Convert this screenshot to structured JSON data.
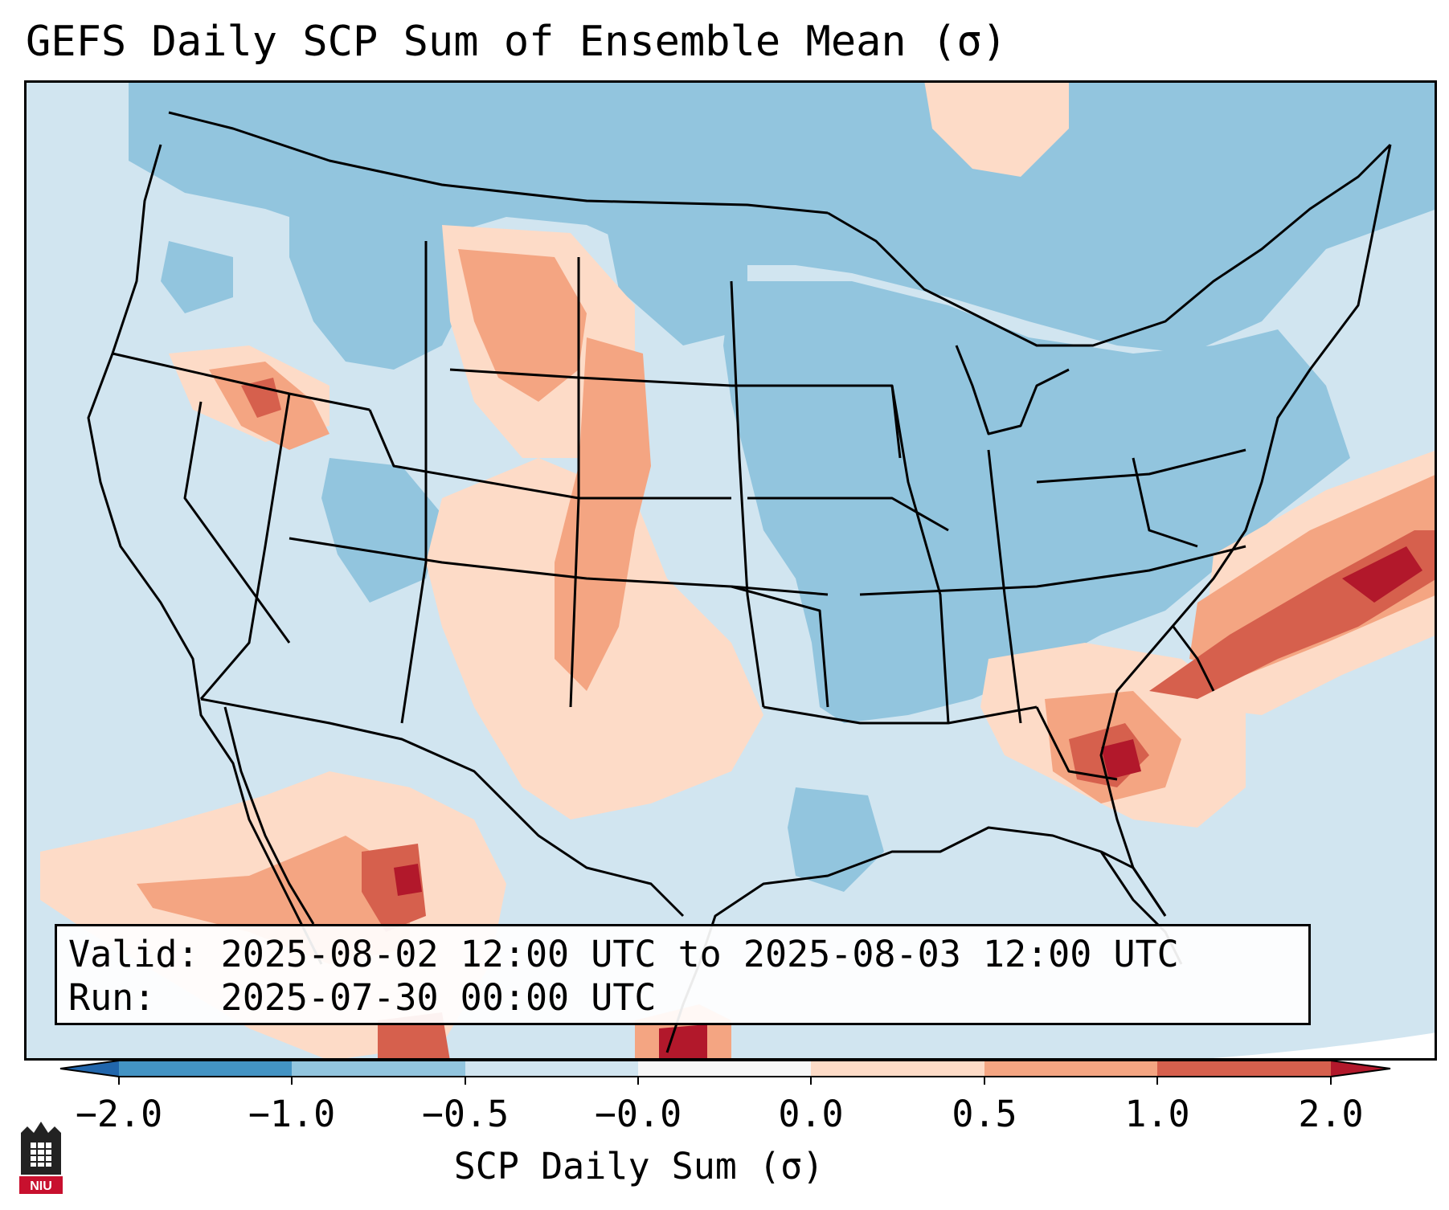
{
  "title": "GEFS Daily SCP Sum of Ensemble Mean (σ)",
  "info": {
    "valid_label": "Valid:",
    "valid_value": "2025-08-02 12:00 UTC to 2025-08-03 12:00 UTC",
    "run_label": "Run:",
    "run_value": "2025-07-30 00:00 UTC"
  },
  "colorbar": {
    "label": "SCP Daily Sum (σ)",
    "ticks": [
      "−2.0",
      "−1.0",
      "−0.5",
      "−0.0",
      "0.0",
      "0.5",
      "1.0",
      "2.0"
    ],
    "colors": {
      "under": "#2166ac",
      "bin1": "#4393c3",
      "bin2": "#92c5de",
      "bin3": "#d1e5f0",
      "bin4": "#f7f7f7",
      "bin5": "#fddbc7",
      "bin6": "#f4a582",
      "bin7": "#d6604d",
      "over": "#b2182b"
    }
  },
  "map_colors": {
    "ocean": "#d1e5f0",
    "neg_mid": "#92c5de",
    "pos_low": "#fddbc7",
    "pos_mid": "#f4a582",
    "pos_high": "#d6604d",
    "pos_max": "#b2182b",
    "boundary": "#000000"
  },
  "logo": {
    "text": "NIU",
    "color": "#c8102e"
  }
}
